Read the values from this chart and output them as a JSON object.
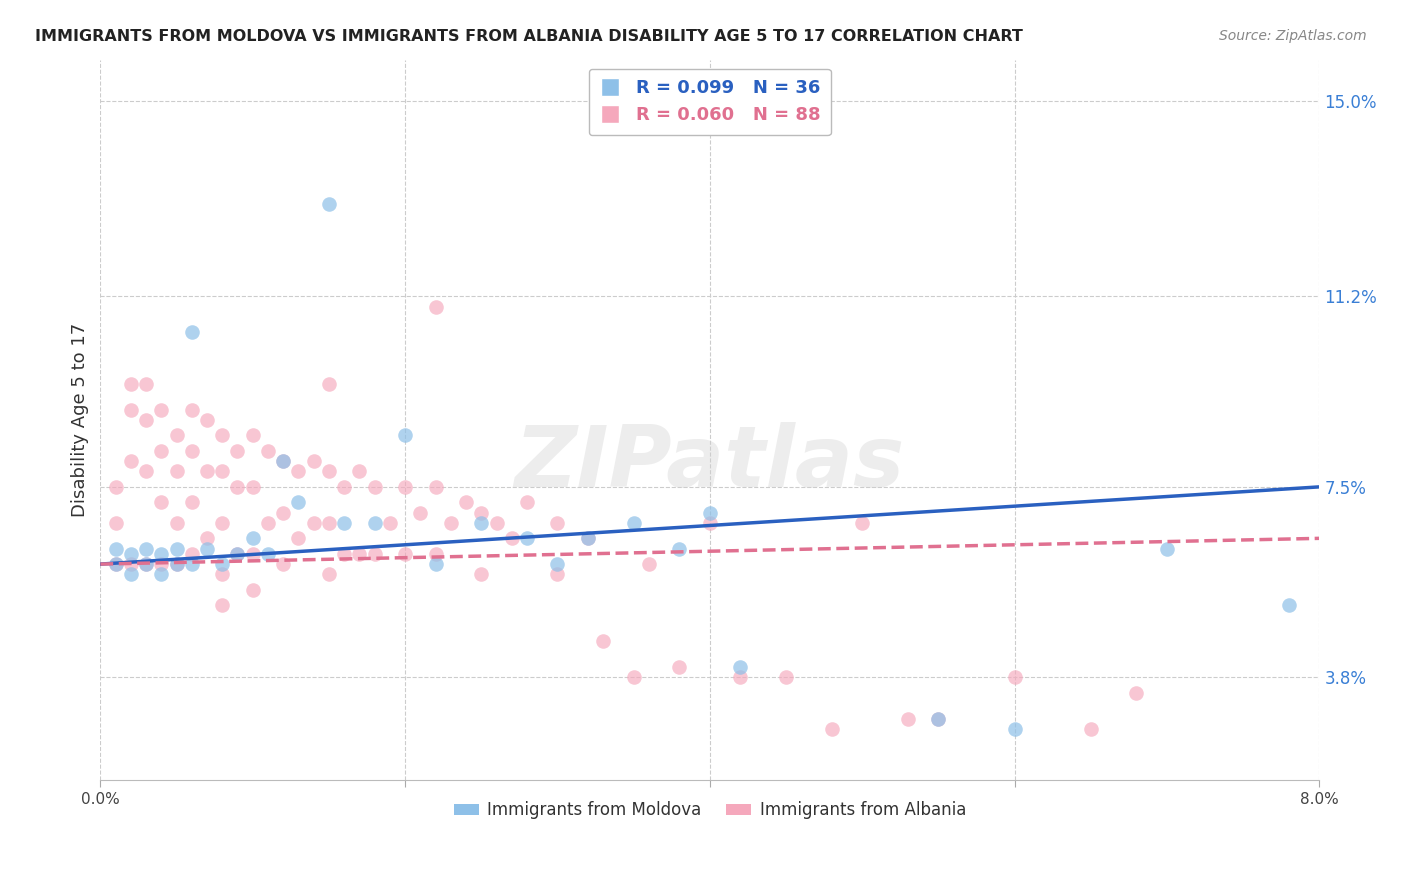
{
  "title": "IMMIGRANTS FROM MOLDOVA VS IMMIGRANTS FROM ALBANIA DISABILITY AGE 5 TO 17 CORRELATION CHART",
  "source": "Source: ZipAtlas.com",
  "ylabel": "Disability Age 5 to 17",
  "xlim": [
    0.0,
    0.08
  ],
  "ylim": [
    0.018,
    0.158
  ],
  "yticks": [
    0.038,
    0.075,
    0.112,
    0.15
  ],
  "ytick_labels": [
    "3.8%",
    "7.5%",
    "11.2%",
    "15.0%"
  ],
  "xticks": [
    0.0,
    0.02,
    0.04,
    0.06,
    0.08
  ],
  "xtick_labels": [
    "0.0%",
    "",
    "",
    "",
    "8.0%"
  ],
  "moldova_color": "#8ec0e8",
  "albania_color": "#f5a8bc",
  "moldova_line_color": "#2a60c0",
  "albania_line_color": "#e07090",
  "moldova_R": 0.099,
  "moldova_N": 36,
  "albania_R": 0.06,
  "albania_N": 88,
  "watermark": "ZIPatlas",
  "background_color": "#ffffff",
  "moldova_x": [
    0.001,
    0.001,
    0.002,
    0.002,
    0.003,
    0.003,
    0.004,
    0.004,
    0.005,
    0.005,
    0.006,
    0.006,
    0.007,
    0.008,
    0.009,
    0.01,
    0.011,
    0.012,
    0.013,
    0.015,
    0.016,
    0.018,
    0.02,
    0.022,
    0.025,
    0.028,
    0.03,
    0.032,
    0.035,
    0.038,
    0.04,
    0.042,
    0.055,
    0.06,
    0.07,
    0.078
  ],
  "moldova_y": [
    0.063,
    0.06,
    0.062,
    0.058,
    0.063,
    0.06,
    0.062,
    0.058,
    0.063,
    0.06,
    0.105,
    0.06,
    0.063,
    0.06,
    0.062,
    0.065,
    0.062,
    0.08,
    0.072,
    0.13,
    0.068,
    0.068,
    0.085,
    0.06,
    0.068,
    0.065,
    0.06,
    0.065,
    0.068,
    0.063,
    0.07,
    0.04,
    0.03,
    0.028,
    0.063,
    0.052
  ],
  "albania_x": [
    0.001,
    0.001,
    0.001,
    0.002,
    0.002,
    0.002,
    0.002,
    0.003,
    0.003,
    0.003,
    0.003,
    0.004,
    0.004,
    0.004,
    0.004,
    0.005,
    0.005,
    0.005,
    0.005,
    0.006,
    0.006,
    0.006,
    0.006,
    0.007,
    0.007,
    0.007,
    0.008,
    0.008,
    0.008,
    0.008,
    0.009,
    0.009,
    0.009,
    0.01,
    0.01,
    0.01,
    0.011,
    0.011,
    0.012,
    0.012,
    0.012,
    0.013,
    0.013,
    0.014,
    0.014,
    0.015,
    0.015,
    0.015,
    0.016,
    0.016,
    0.017,
    0.017,
    0.018,
    0.018,
    0.019,
    0.02,
    0.02,
    0.021,
    0.022,
    0.022,
    0.023,
    0.024,
    0.025,
    0.025,
    0.026,
    0.027,
    0.028,
    0.03,
    0.03,
    0.032,
    0.033,
    0.035,
    0.036,
    0.038,
    0.04,
    0.042,
    0.045,
    0.048,
    0.05,
    0.053,
    0.055,
    0.06,
    0.065,
    0.068,
    0.022,
    0.01,
    0.008,
    0.015
  ],
  "albania_y": [
    0.075,
    0.068,
    0.06,
    0.095,
    0.09,
    0.08,
    0.06,
    0.095,
    0.088,
    0.078,
    0.06,
    0.09,
    0.082,
    0.072,
    0.06,
    0.085,
    0.078,
    0.068,
    0.06,
    0.09,
    0.082,
    0.072,
    0.062,
    0.088,
    0.078,
    0.065,
    0.085,
    0.078,
    0.068,
    0.058,
    0.082,
    0.075,
    0.062,
    0.085,
    0.075,
    0.062,
    0.082,
    0.068,
    0.08,
    0.07,
    0.06,
    0.078,
    0.065,
    0.08,
    0.068,
    0.078,
    0.068,
    0.058,
    0.075,
    0.062,
    0.078,
    0.062,
    0.075,
    0.062,
    0.068,
    0.075,
    0.062,
    0.07,
    0.075,
    0.062,
    0.068,
    0.072,
    0.07,
    0.058,
    0.068,
    0.065,
    0.072,
    0.068,
    0.058,
    0.065,
    0.045,
    0.038,
    0.06,
    0.04,
    0.068,
    0.038,
    0.038,
    0.028,
    0.068,
    0.03,
    0.03,
    0.038,
    0.028,
    0.035,
    0.11,
    0.055,
    0.052,
    0.095
  ]
}
